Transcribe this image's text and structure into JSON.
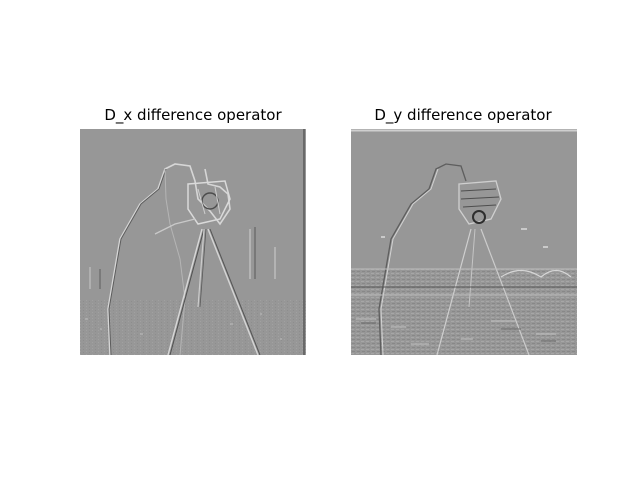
{
  "figure": {
    "panels": [
      {
        "title": "D_x difference operator"
      },
      {
        "title": "D_y difference operator"
      }
    ]
  },
  "colors": {
    "background": "#ffffff",
    "image_gray": "#979797",
    "edge_light": "#d8d8d8",
    "edge_dark": "#4a4a4a"
  }
}
